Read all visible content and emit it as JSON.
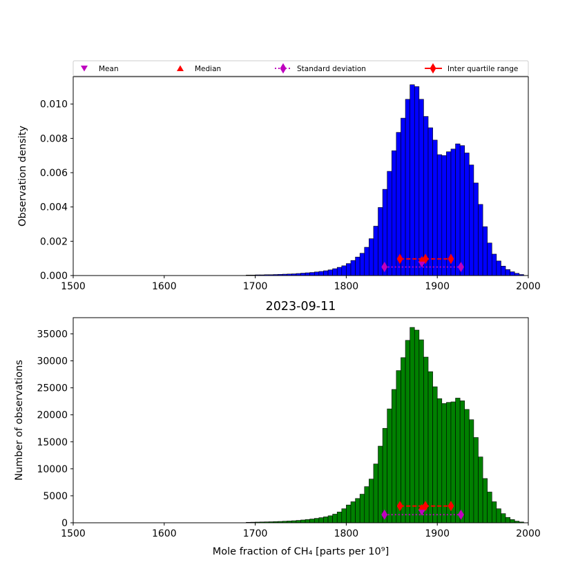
{
  "chart_data": [
    {
      "type": "bar",
      "title": "",
      "xlabel": "",
      "ylabel": "Observation density",
      "xlim": [
        1500,
        2000
      ],
      "ylim": [
        0,
        0.0116
      ],
      "xticks": [
        "1500",
        "1600",
        "1700",
        "1800",
        "1900",
        "2000"
      ],
      "yticks": [
        "0.000",
        "0.002",
        "0.004",
        "0.006",
        "0.008",
        "0.010"
      ],
      "bar_color": "#0000ff",
      "bin_start": 1690,
      "bin_width": 5,
      "values": [
        3e-05,
        3e-05,
        4e-05,
        4e-05,
        5e-05,
        5e-05,
        6e-05,
        7e-05,
        8e-05,
        9e-05,
        0.0001,
        0.00012,
        0.00014,
        0.00016,
        0.00018,
        0.00021,
        0.00024,
        0.00028,
        0.00033,
        0.0004,
        0.00048,
        0.00057,
        0.0007,
        0.00088,
        0.00108,
        0.0013,
        0.00165,
        0.00215,
        0.00288,
        0.00397,
        0.00503,
        0.00608,
        0.00728,
        0.00835,
        0.00918,
        0.01028,
        0.01113,
        0.01102,
        0.01028,
        0.00928,
        0.00862,
        0.0079,
        0.00705,
        0.007,
        0.00722,
        0.00738,
        0.00768,
        0.00758,
        0.00715,
        0.00645,
        0.0054,
        0.00415,
        0.00285,
        0.0019,
        0.00125,
        0.00085,
        0.00055,
        0.00035,
        0.00022,
        0.00013,
        6e-05
      ],
      "markers": {
        "mean": {
          "x": 1883,
          "y": 0.00065
        },
        "median": {
          "x": 1883,
          "y": 0.00095
        },
        "std": {
          "lo": 1842,
          "hi": 1926,
          "y": 0.0005
        },
        "iqr": {
          "lo": 1859,
          "hi": 1915,
          "y": 0.00097
        }
      }
    },
    {
      "type": "bar",
      "title": "2023-09-11",
      "xlabel": "Mole fraction of CH₄ [parts per 10⁹]",
      "ylabel": "Number of observations",
      "xlim": [
        1500,
        2000
      ],
      "ylim": [
        0,
        38000
      ],
      "xticks": [
        "1500",
        "1600",
        "1700",
        "1800",
        "1900",
        "2000"
      ],
      "yticks": [
        "0",
        "5000",
        "10000",
        "15000",
        "20000",
        "25000",
        "30000",
        "35000"
      ],
      "bar_color": "#008000",
      "bin_start": 1690,
      "bin_width": 5,
      "values": [
        90,
        110,
        130,
        150,
        170,
        190,
        220,
        250,
        290,
        330,
        380,
        440,
        520,
        600,
        700,
        820,
        950,
        1100,
        1300,
        1600,
        2000,
        2600,
        3300,
        3900,
        4500,
        5300,
        6700,
        8100,
        10900,
        14200,
        17500,
        21100,
        24700,
        28200,
        30600,
        33800,
        36200,
        35700,
        33900,
        30700,
        28000,
        25200,
        23000,
        22100,
        22300,
        22400,
        23100,
        22600,
        21000,
        19100,
        15800,
        12200,
        8200,
        5700,
        3900,
        2600,
        1700,
        1000,
        600,
        300,
        150
      ],
      "markers": {
        "mean": {
          "x": 1883,
          "y": 1900
        },
        "median": {
          "x": 1883,
          "y": 2900
        },
        "std": {
          "lo": 1842,
          "hi": 1926,
          "y": 1500
        },
        "iqr": {
          "lo": 1859,
          "hi": 1915,
          "y": 3100
        }
      }
    }
  ],
  "legend": {
    "entries": [
      "Mean",
      "Median",
      "Standard deviation",
      "Inter quartile range"
    ],
    "colors": {
      "mean": "#bf00bf",
      "median": "#ff0000",
      "std": "#bf00bf",
      "iqr": "#ff0000"
    }
  }
}
